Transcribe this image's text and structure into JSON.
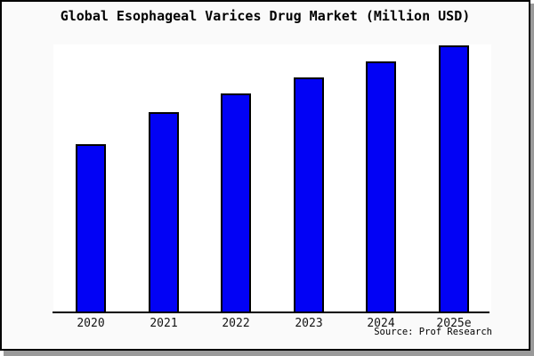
{
  "title": "Global Esophageal Varices Drug Market (Million USD)",
  "source": "Source: Prof Research",
  "colors": {
    "bar_fill": "#0202f5",
    "bar_outline": "#000000",
    "page_background": "#fafafa",
    "plot_background": "#ffffff",
    "frame": "#000000",
    "shadow": "#9a9a9a"
  },
  "chart_data": {
    "type": "bar",
    "title": "Global Esophageal Varices Drug Market (Million USD)",
    "categories": [
      "2020",
      "2021",
      "2022",
      "2023",
      "2024",
      "2025e"
    ],
    "values": [
      63,
      75,
      82,
      88,
      94,
      100
    ],
    "values_note": "no y-axis scale shown; values estimated relative to tallest bar (2025e = 100)",
    "xlabel": "",
    "ylabel": "",
    "grid": false,
    "legend": false,
    "y_axis_ticks": false,
    "bar_color": "#0202f5",
    "bar_border_color": "#000000",
    "source": "Source: Prof Research"
  }
}
